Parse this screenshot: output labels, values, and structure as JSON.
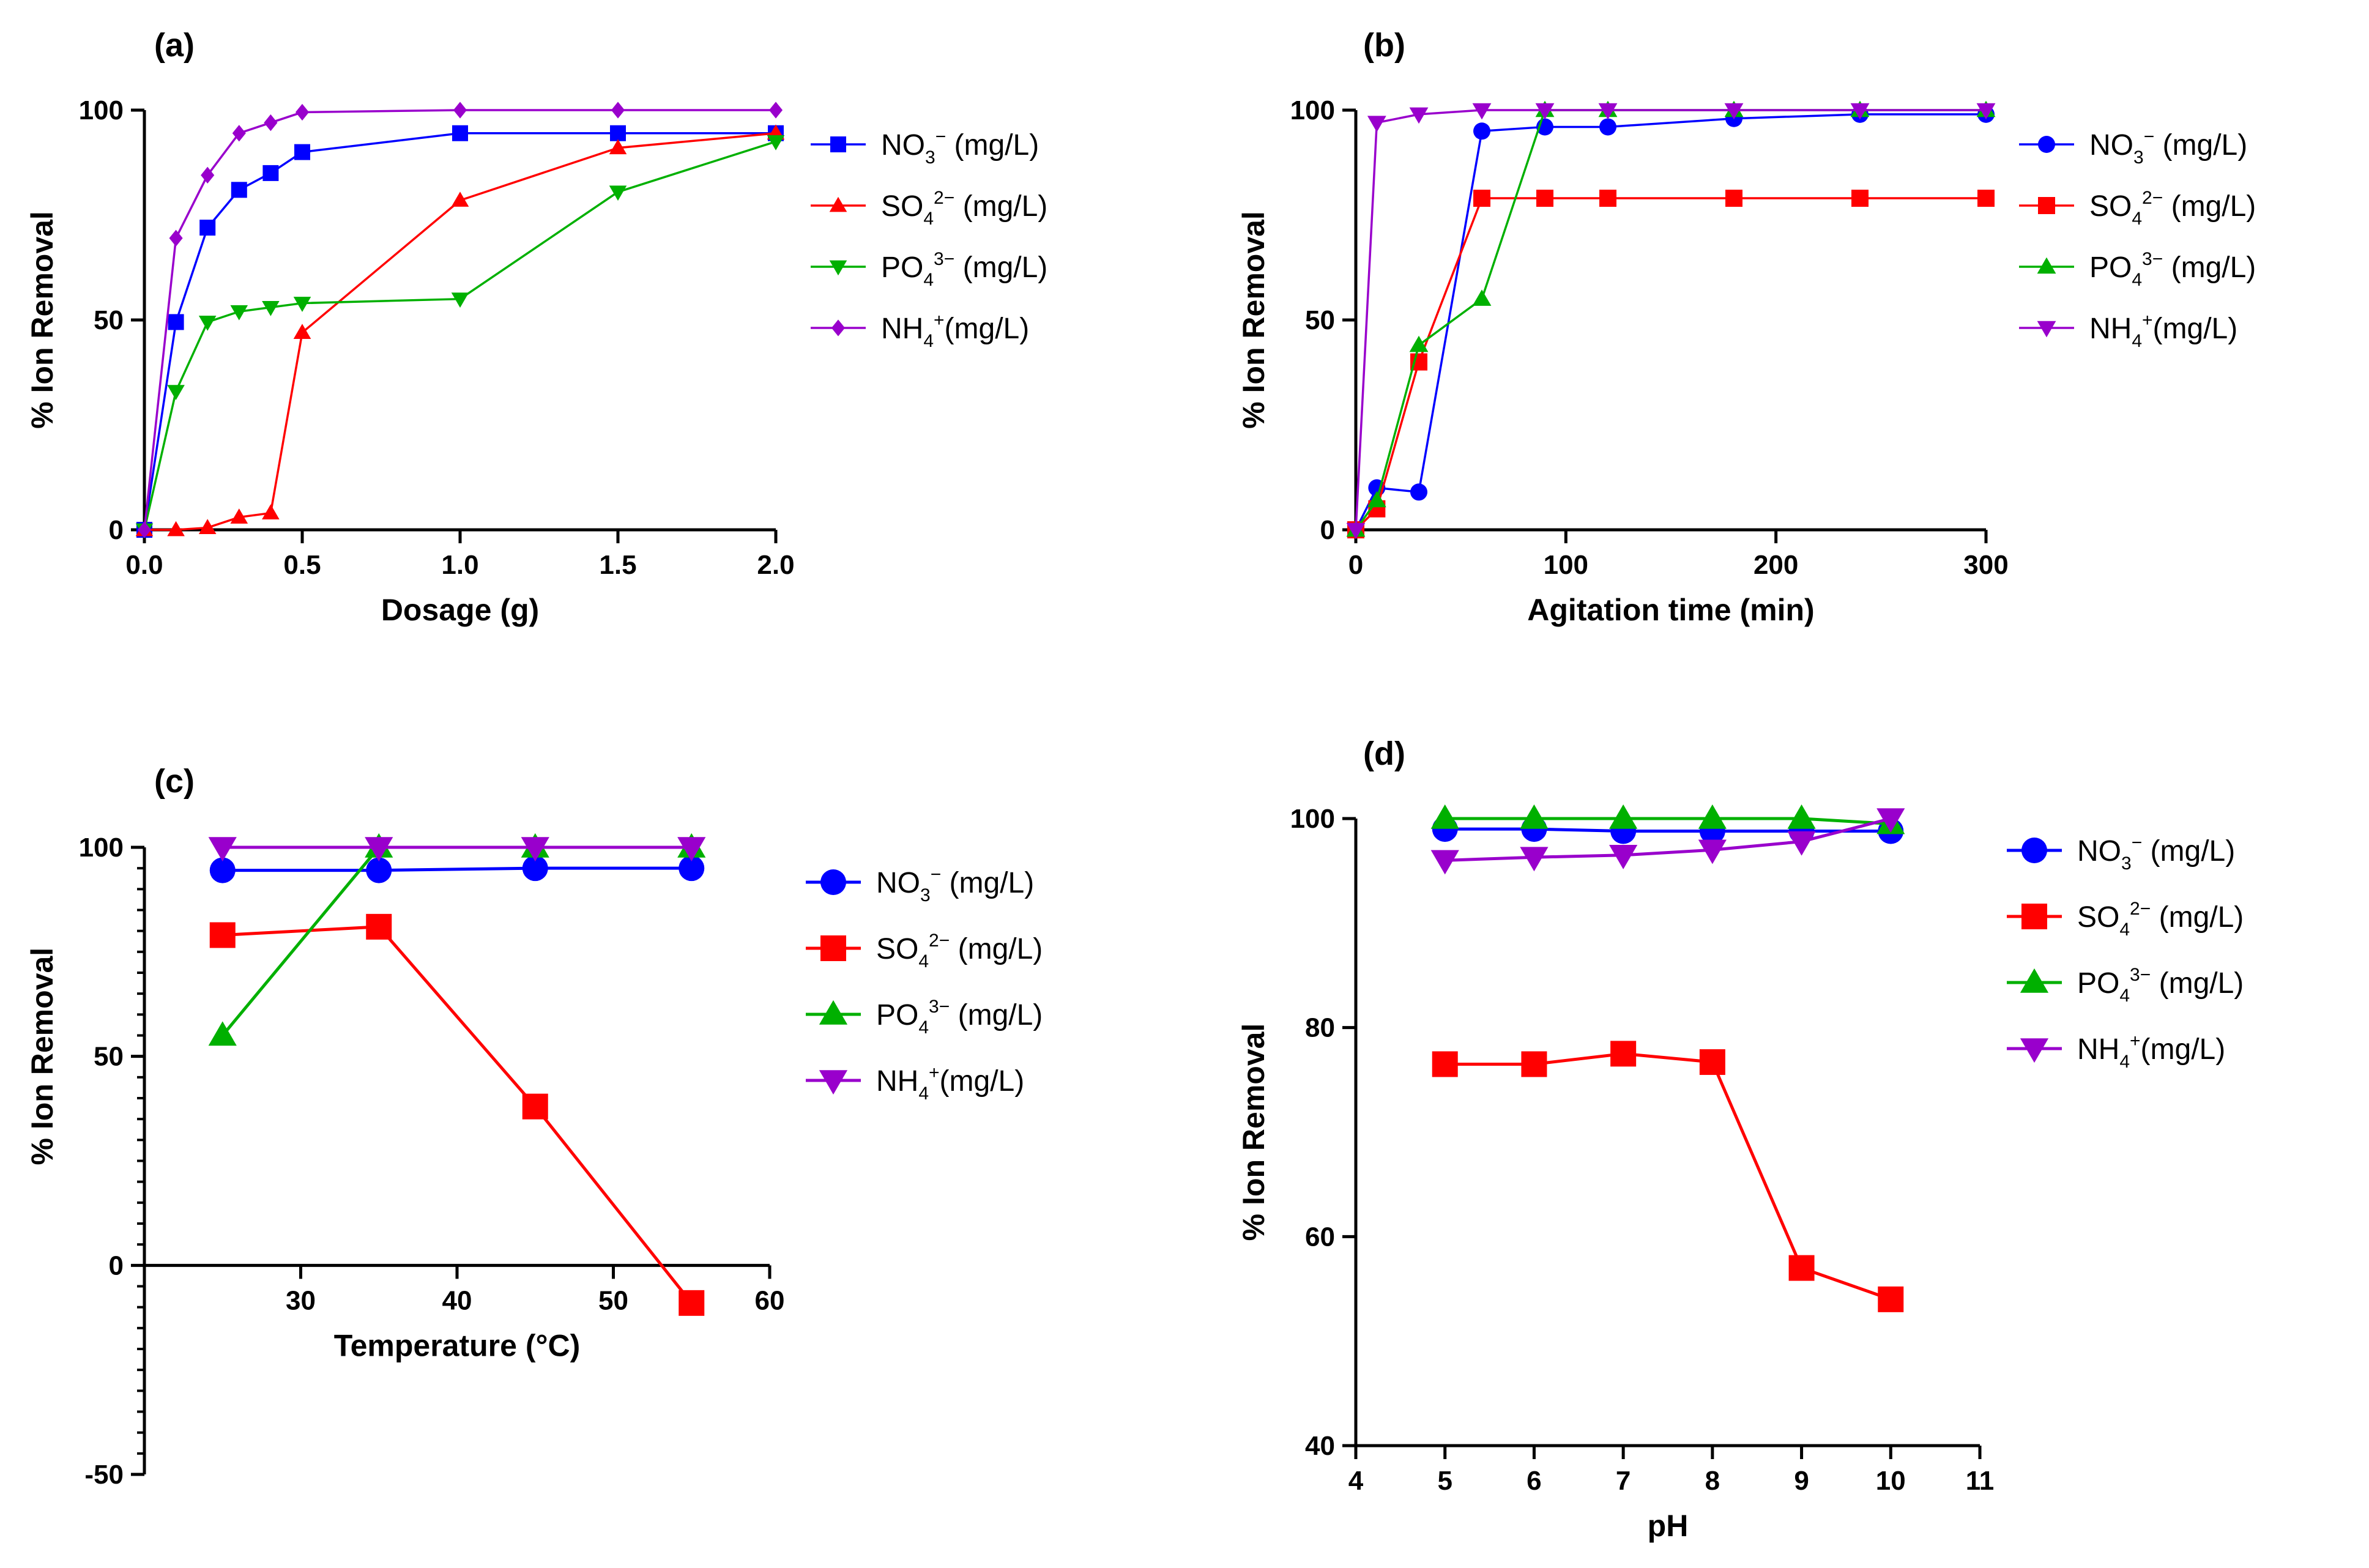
{
  "colors": {
    "nitrate": "#0000FF",
    "sulfate": "#FF0000",
    "phosphate": "#00B000",
    "ammonium": "#9900CC",
    "axis": "#000000"
  },
  "legend_labels": {
    "nitrate": {
      "base": "NO",
      "sub": "3",
      "sup": "−",
      "unit": " (mg/L)"
    },
    "sulfate": {
      "base": "SO",
      "sub": "4",
      "sup": "2−",
      "unit": " (mg/L)"
    },
    "phosphate": {
      "base": "PO",
      "sub": "4",
      "sup": "3−",
      "unit": " (mg/L)"
    },
    "ammonium": {
      "base": "NH",
      "sub": "4",
      "sup": "+",
      "unit": "(mg/L)"
    }
  },
  "chart_data": [
    {
      "panel": "(a)",
      "type": "line",
      "xlabel": "Dosage (g)",
      "ylabel": "%  Ion Removal",
      "xlim": [
        0,
        2
      ],
      "ylim": [
        0,
        100
      ],
      "xticks": [
        0,
        0.5,
        1,
        1.5,
        2
      ],
      "xtick_labels": [
        "0.0",
        "0.5",
        "1.0",
        "1.5",
        "2.0"
      ],
      "yticks": [
        0,
        50,
        100
      ],
      "ytick_labels": [
        "0",
        "50",
        "100"
      ],
      "legend_position": "right",
      "series": [
        {
          "key": "nitrate",
          "marker": "square",
          "x": [
            0,
            0.1,
            0.2,
            0.3,
            0.4,
            0.5,
            1.0,
            1.5,
            2.0
          ],
          "y": [
            0,
            49.5,
            72,
            81,
            85,
            90,
            94.5,
            94.5,
            94.5
          ]
        },
        {
          "key": "sulfate",
          "marker": "triangle-up",
          "x": [
            0,
            0.1,
            0.2,
            0.3,
            0.4,
            0.5,
            1.0,
            1.5,
            2.0
          ],
          "y": [
            0,
            0,
            0.5,
            3,
            4,
            47,
            78.5,
            91,
            94.5
          ]
        },
        {
          "key": "phosphate",
          "marker": "triangle-down",
          "x": [
            0,
            0.1,
            0.2,
            0.3,
            0.4,
            0.5,
            1.0,
            1.5,
            2.0
          ],
          "y": [
            0,
            33,
            49.5,
            52,
            53,
            54,
            55,
            80.5,
            92.5
          ]
        },
        {
          "key": "ammonium",
          "marker": "diamond",
          "x": [
            0,
            0.1,
            0.2,
            0.3,
            0.4,
            0.5,
            1.0,
            1.5,
            2.0
          ],
          "y": [
            0,
            69.5,
            84.5,
            94.5,
            97,
            99.5,
            100,
            100,
            100
          ]
        }
      ]
    },
    {
      "panel": "(b)",
      "type": "line",
      "xlabel": "Agitation time (min)",
      "ylabel": "%  Ion Removal",
      "xlim": [
        0,
        300
      ],
      "ylim": [
        0,
        100
      ],
      "xticks": [
        0,
        100,
        200,
        300
      ],
      "xtick_labels": [
        "0",
        "100",
        "200",
        "300"
      ],
      "yticks": [
        0,
        50,
        100
      ],
      "ytick_labels": [
        "0",
        "50",
        "100"
      ],
      "legend_position": "right",
      "series": [
        {
          "key": "nitrate",
          "marker": "circle",
          "x": [
            0,
            10,
            30,
            60,
            90,
            120,
            180,
            240,
            300
          ],
          "y": [
            0,
            10,
            9,
            95,
            96,
            96,
            98,
            99,
            99
          ]
        },
        {
          "key": "sulfate",
          "marker": "square",
          "x": [
            0,
            10,
            30,
            60,
            90,
            120,
            180,
            240,
            300
          ],
          "y": [
            0,
            5,
            40,
            79,
            79,
            79,
            79,
            79,
            79
          ]
        },
        {
          "key": "phosphate",
          "marker": "triangle-up",
          "x": [
            0,
            10,
            30,
            60,
            90,
            120,
            180,
            240,
            300
          ],
          "y": [
            0,
            7,
            44,
            55,
            100,
            100,
            100,
            100,
            100
          ]
        },
        {
          "key": "ammonium",
          "marker": "triangle-down",
          "x": [
            0,
            10,
            30,
            60,
            90,
            120,
            180,
            240,
            300
          ],
          "y": [
            0,
            97,
            99,
            100,
            100,
            100,
            100,
            100,
            100
          ]
        }
      ]
    },
    {
      "panel": "(c)",
      "type": "line",
      "xlabel": "Temperature (°C)",
      "ylabel": "%  Ion Removal",
      "xlim": [
        20,
        60
      ],
      "ylim": [
        -50,
        100
      ],
      "xticks": [
        30,
        40,
        50,
        60
      ],
      "xtick_labels": [
        "30",
        "40",
        "50",
        "60"
      ],
      "yticks": [
        -50,
        0,
        50,
        100
      ],
      "ytick_labels": [
        "-50",
        "0",
        "50",
        "100"
      ],
      "legend_position": "right",
      "series": [
        {
          "key": "nitrate",
          "marker": "circle",
          "x": [
            25,
            35,
            45,
            55
          ],
          "y": [
            94.5,
            94.5,
            95,
            95
          ]
        },
        {
          "key": "sulfate",
          "marker": "square",
          "x": [
            25,
            35,
            45,
            55
          ],
          "y": [
            79,
            81,
            38,
            -9
          ]
        },
        {
          "key": "phosphate",
          "marker": "triangle-up",
          "x": [
            25,
            35,
            45,
            55
          ],
          "y": [
            55,
            100,
            100,
            100
          ]
        },
        {
          "key": "ammonium",
          "marker": "triangle-down",
          "x": [
            25,
            35,
            45,
            55
          ],
          "y": [
            100,
            100,
            100,
            100
          ]
        }
      ]
    },
    {
      "panel": "(d)",
      "type": "line",
      "xlabel": "pH",
      "ylabel": "%  Ion Removal",
      "xlim": [
        4,
        11
      ],
      "ylim": [
        40,
        100
      ],
      "xticks": [
        4,
        5,
        6,
        7,
        8,
        9,
        10,
        11
      ],
      "xtick_labels": [
        "4",
        "5",
        "6",
        "7",
        "8",
        "9",
        "10",
        "11"
      ],
      "yticks": [
        40,
        60,
        80,
        100
      ],
      "ytick_labels": [
        "40",
        "60",
        "80",
        "100"
      ],
      "legend_position": "right",
      "series": [
        {
          "key": "nitrate",
          "marker": "circle",
          "x": [
            5,
            6,
            7,
            8,
            9,
            10
          ],
          "y": [
            99,
            99,
            98.8,
            98.8,
            98.8,
            98.8
          ]
        },
        {
          "key": "sulfate",
          "marker": "square",
          "x": [
            5,
            6,
            7,
            8,
            9,
            10
          ],
          "y": [
            76.5,
            76.5,
            77.5,
            76.7,
            57,
            54
          ]
        },
        {
          "key": "phosphate",
          "marker": "triangle-up",
          "x": [
            5,
            6,
            7,
            8,
            9,
            10
          ],
          "y": [
            100,
            100,
            100,
            100,
            100,
            99.5
          ]
        },
        {
          "key": "ammonium",
          "marker": "triangle-down",
          "x": [
            5,
            6,
            7,
            8,
            9,
            10
          ],
          "y": [
            96,
            96.3,
            96.5,
            97,
            97.8,
            100
          ]
        }
      ]
    }
  ]
}
